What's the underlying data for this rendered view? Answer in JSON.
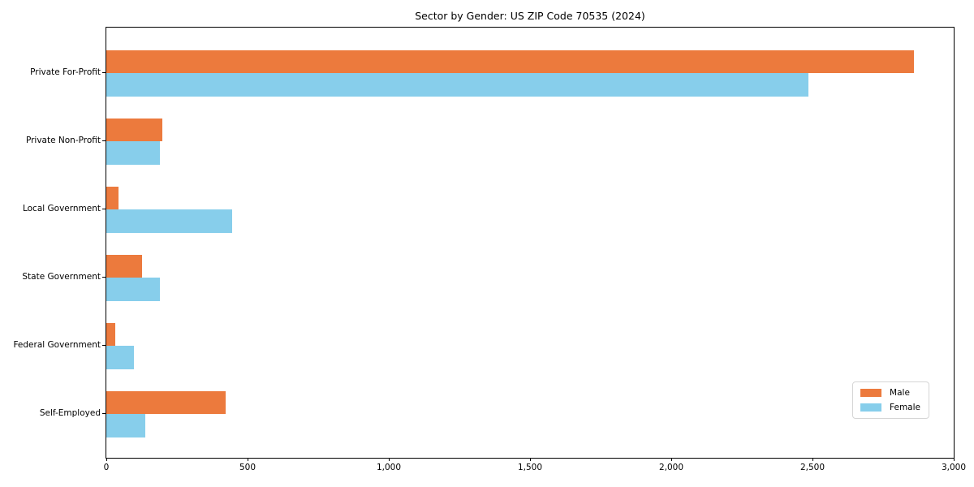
{
  "title": "Sector by Gender: US ZIP Code 70535 (2024)",
  "chart_data": {
    "type": "bar",
    "orientation": "horizontal",
    "title": "Sector by Gender: US ZIP Code 70535 (2024)",
    "categories": [
      "Private For-Profit",
      "Private Non-Profit",
      "Local Government",
      "State Government",
      "Federal Government",
      "Self-Employed"
    ],
    "series": [
      {
        "name": "Male",
        "color": "#EC7A3D",
        "values": [
          2860,
          197,
          43,
          127,
          32,
          421
        ]
      },
      {
        "name": "Female",
        "color": "#87CEEB",
        "values": [
          2485,
          191,
          446,
          191,
          99,
          139
        ]
      }
    ],
    "xlabel": "",
    "ylabel": "",
    "xlim": [
      0,
      3000
    ],
    "x_ticks": [
      0,
      500,
      1000,
      1500,
      2000,
      2500,
      3000
    ],
    "x_tick_labels": [
      "0",
      "500",
      "1,000",
      "1,500",
      "2,000",
      "2,500",
      "3,000"
    ],
    "grid": false,
    "legend": {
      "position": "lower right",
      "entries": [
        "Male",
        "Female"
      ]
    }
  }
}
